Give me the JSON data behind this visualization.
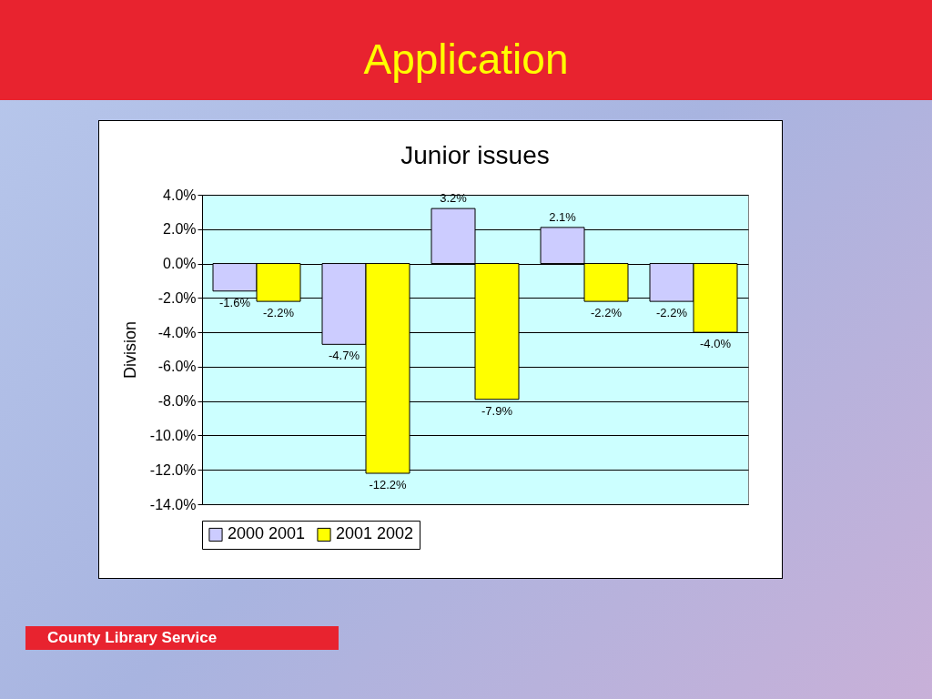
{
  "chart_data": {
    "type": "bar",
    "title": "Application",
    "subtitle": "Junior issues",
    "ylabel": "Division",
    "categories": [
      null,
      null,
      null,
      null,
      null
    ],
    "series": [
      {
        "name": "2000 2001",
        "color": "#ccccff",
        "values": [
          -1.6,
          -4.7,
          3.2,
          2.1,
          -2.2
        ],
        "value_labels": [
          "-1.6%",
          "-4.7%",
          "3.2%",
          "2.1%",
          "-2.2%"
        ]
      },
      {
        "name": "2001 2002",
        "color": "#ffff00",
        "values": [
          -2.2,
          -12.2,
          -7.9,
          -2.2,
          -4.0
        ],
        "value_labels": [
          "-2.2%",
          "-12.2%",
          "-7.9%",
          "-2.2%",
          "-4.0%"
        ]
      }
    ],
    "ylim": [
      -14,
      4
    ],
    "yticks": [
      {
        "value": 4,
        "label": "4.0%"
      },
      {
        "value": 2,
        "label": "2.0%"
      },
      {
        "value": 0,
        "label": "0.0%"
      },
      {
        "value": -2,
        "label": "-2.0%"
      },
      {
        "value": -4,
        "label": "-4.0%"
      },
      {
        "value": -6,
        "label": "-6.0%"
      },
      {
        "value": -8,
        "label": "-8.0%"
      },
      {
        "value": -10,
        "label": "-10.0%"
      },
      {
        "value": -12,
        "label": "-12.0%"
      },
      {
        "value": -14,
        "label": "-14.0%"
      }
    ],
    "grid": "y",
    "legend": "bottom",
    "annotations": [
      "County Library Service"
    ]
  }
}
